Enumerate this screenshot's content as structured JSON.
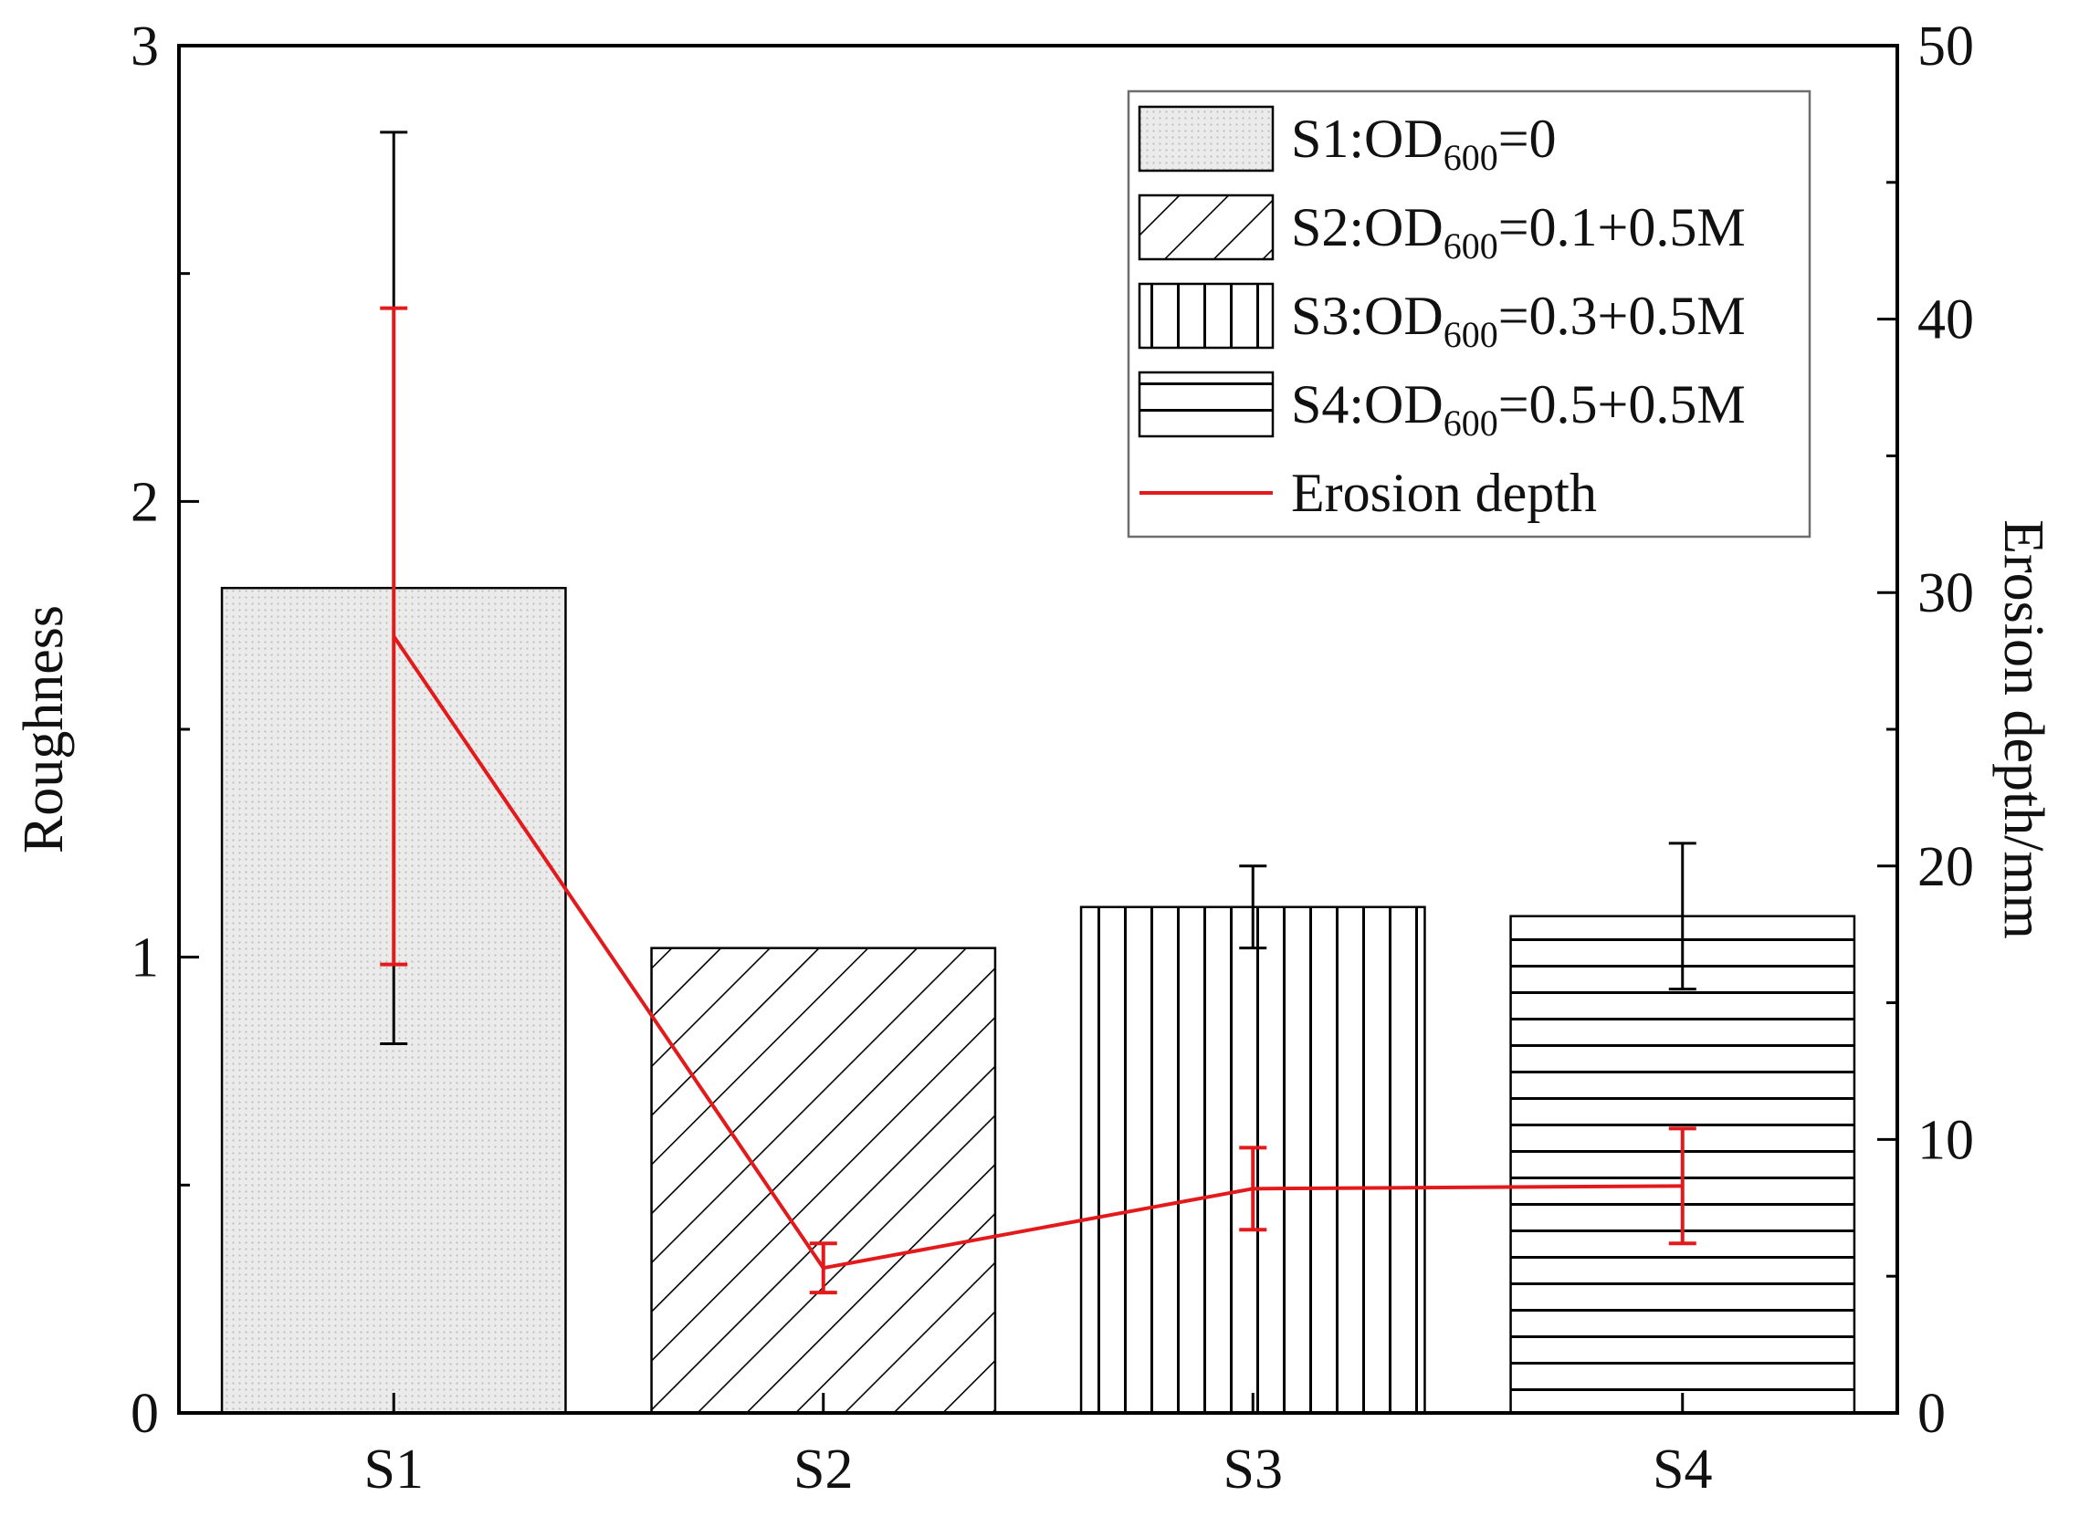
{
  "chart_data": {
    "type": "bar",
    "title": "",
    "categories": [
      "S1",
      "S2",
      "S3",
      "S4"
    ],
    "xlabel": "",
    "ylabel": "Roughness",
    "y2label": "Erosion depth/mm",
    "ylim": [
      0,
      3
    ],
    "y2lim": [
      0,
      50
    ],
    "yticks": [
      "0",
      "1",
      "2",
      "3"
    ],
    "y2ticks": [
      "0",
      "10",
      "20",
      "30",
      "40",
      "50"
    ],
    "legend_position": "top-right",
    "grid": false,
    "series": [
      {
        "name": "Roughness",
        "type": "bar",
        "axis": "left",
        "values": [
          1.81,
          1.02,
          1.11,
          1.09
        ],
        "error": [
          1.0,
          0.0,
          0.09,
          0.16
        ],
        "patterns": [
          "dots",
          "diagonal",
          "vertical",
          "horizontal"
        ],
        "color": "#000000"
      },
      {
        "name": "Erosion depth",
        "type": "line",
        "axis": "right",
        "values": [
          28.4,
          5.3,
          8.2,
          8.3
        ],
        "error": [
          12.0,
          0.9,
          1.5,
          2.1
        ],
        "color": "#e31a1c"
      }
    ],
    "legend": [
      {
        "prefix": "S1:OD",
        "sub": "600",
        "suffix": "=0",
        "pattern": "dots"
      },
      {
        "prefix": "S2:OD",
        "sub": "600",
        "suffix": "=0.1+0.5M",
        "pattern": "diagonal"
      },
      {
        "prefix": "S3:OD",
        "sub": "600",
        "suffix": "=0.3+0.5M",
        "pattern": "vertical"
      },
      {
        "prefix": "S4:OD",
        "sub": "600",
        "suffix": "=0.5+0.5M",
        "pattern": "horizontal"
      },
      {
        "label": "Erosion depth",
        "pattern": "line"
      }
    ]
  }
}
